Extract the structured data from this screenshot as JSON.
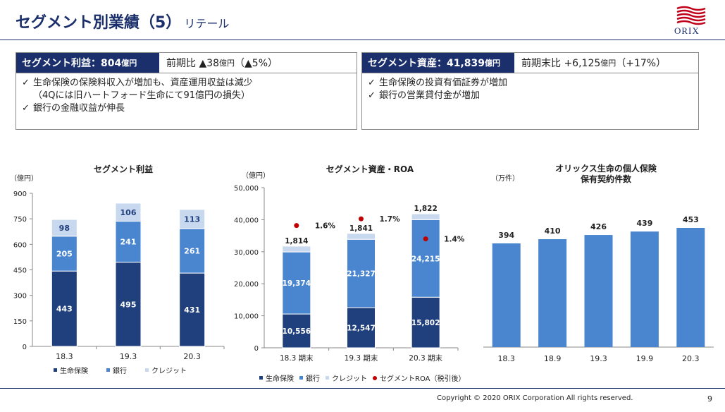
{
  "header": {
    "title": "セグメント別業績（5）",
    "subtitle": "リテール",
    "logo_text": "ORIX"
  },
  "profit_box": {
    "label": "セグメント利益：804",
    "label_unit": "億円",
    "yoy_prefix": "前期比 ▲38",
    "yoy_unit": "億円",
    "yoy_suffix": "（▲5%）",
    "bullets": [
      "生命保険の保険料収入が増加も、資産運用収益は減少",
      "（4Qには旧ハートフォード生命にて91億円の損失）",
      "銀行の金融収益が伸長"
    ]
  },
  "asset_box": {
    "label": "セグメント資産：41,839",
    "label_unit": "億円",
    "yoy_prefix": "前期末比 +6,125",
    "yoy_unit": "億円",
    "yoy_suffix": "（+17%）",
    "bullets": [
      "生命保険の投資有価証券が増加",
      "銀行の営業貸付金が増加"
    ]
  },
  "colors": {
    "navy": "#1f3f7d",
    "blue": "#4a86d0",
    "light": "#c8d8ee",
    "roa": "#c00000",
    "single": "#4a86d0"
  },
  "chart_data": [
    {
      "type": "bar",
      "stacked": true,
      "title": "セグメント利益",
      "unit": "（億円）",
      "categories": [
        "18.3",
        "19.3",
        "20.3"
      ],
      "series": [
        {
          "name": "生命保険",
          "values": [
            443,
            495,
            431
          ]
        },
        {
          "name": "銀行",
          "values": [
            205,
            241,
            261
          ]
        },
        {
          "name": "クレジット",
          "values": [
            98,
            106,
            113
          ]
        }
      ],
      "ylim": [
        0,
        900
      ],
      "yticks": [
        "0",
        "150",
        "300",
        "450",
        "600",
        "750",
        "900"
      ],
      "legend_position": "bottom"
    },
    {
      "type": "bar",
      "stacked": true,
      "title": "セグメント資産・ROA",
      "unit": "（億円）",
      "categories": [
        "18.3 期末",
        "19.3 期末",
        "20.3 期末"
      ],
      "series": [
        {
          "name": "生命保険",
          "values": [
            10556,
            12547,
            15802
          ]
        },
        {
          "name": "銀行",
          "values": [
            19374,
            21327,
            24215
          ]
        },
        {
          "name": "クレジット",
          "values": [
            1814,
            1841,
            1822
          ]
        },
        {
          "name": "セグメントROA（税引後）",
          "values": [
            1.6,
            1.7,
            1.4
          ],
          "labels": [
            "1.6%",
            "1.7%",
            "1.4%"
          ]
        }
      ],
      "value_labels": {
        "生命保険": [
          "10,556",
          "12,547",
          "15,802"
        ],
        "銀行": [
          "19,374",
          "21,327",
          "24,215"
        ],
        "クレジット": [
          "1,814",
          "1,841",
          "1,822"
        ]
      },
      "ylim": [
        0,
        50000
      ],
      "yticks": [
        "0",
        "10,000",
        "20,000",
        "30,000",
        "40,000",
        "50,000"
      ],
      "legend_position": "bottom"
    },
    {
      "type": "bar",
      "title": "オリックス生命の個人保険",
      "title_line2": "保有契約件数",
      "unit": "（万件）",
      "categories": [
        "18.3",
        "18.9",
        "19.3",
        "19.9",
        "20.3"
      ],
      "values": [
        394,
        410,
        426,
        439,
        453
      ]
    }
  ],
  "footer": {
    "copyright": "Copyright © 2020 ORIX Corporation All rights reserved.",
    "page": "9"
  }
}
